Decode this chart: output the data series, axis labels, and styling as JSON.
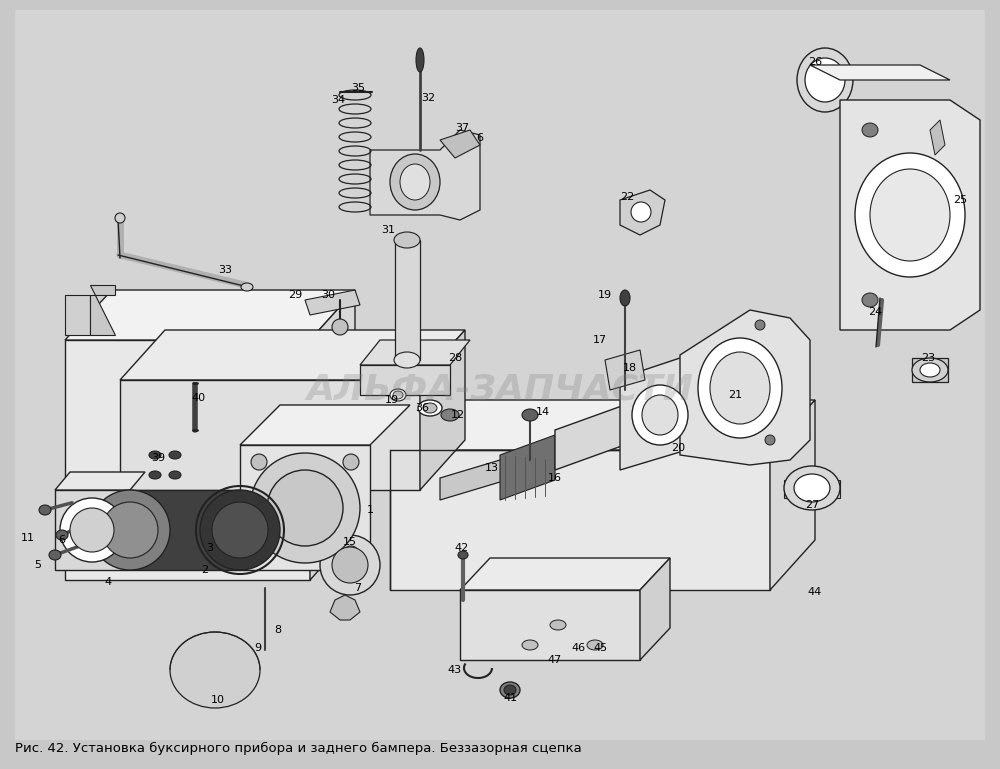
{
  "bg_color": "#c8c8c8",
  "figure_bg": "#c8c8c8",
  "watermark": "АЛЬФА-ЗАПЧАСТИ",
  "caption_text": "Рис. 42. Установка буксирного прибора и заднего бампера. Беззазорная сцепка",
  "caption_fontsize": 9.5,
  "watermark_fontsize": 26,
  "watermark_alpha": 0.28,
  "lc": "#222222",
  "lw": 0.9
}
